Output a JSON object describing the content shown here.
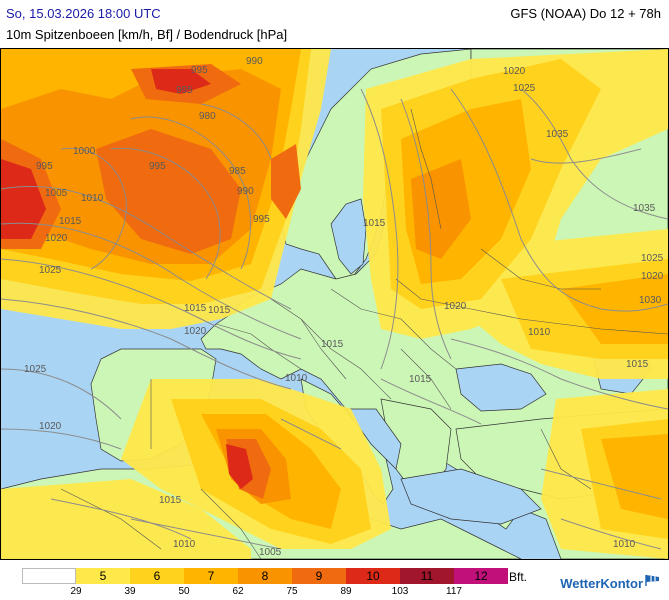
{
  "header": {
    "datetime": "So, 15.03.2026 18:00 UTC",
    "model": "GFS (NOAA) Do 12 + 78h",
    "parameter": "10m Spitzenboeen [km/h, Bf] / Bodendruck [hPa]"
  },
  "legend": {
    "bft_levels": [
      "",
      "5",
      "6",
      "7",
      "8",
      "9",
      "10",
      "11",
      "12"
    ],
    "bft_colors": [
      "#ffffff",
      "#ffe84a",
      "#ffd21e",
      "#ffb400",
      "#f99300",
      "#f06a10",
      "#dd2a18",
      "#a1162c",
      "#c2107a"
    ],
    "kmh_thresholds": [
      "29",
      "39",
      "50",
      "62",
      "75",
      "89",
      "103",
      "117"
    ],
    "unit": "Bft."
  },
  "brand": {
    "name": "WetterKontor",
    "icon": "wind-sock-icon"
  },
  "map": {
    "colors": {
      "sea": "#a9d4f4",
      "land": "#ccf6b6",
      "bf5": "#ffe84a",
      "bf6": "#ffd21e",
      "bf7": "#ffb400",
      "bf8": "#f99300",
      "bf9": "#f06a10",
      "bf10": "#dd2a18",
      "isobar": "#8c8c8c",
      "border": "#555555",
      "coast": "#333333"
    },
    "isobar_labels": [
      "995",
      "990",
      "995",
      "980",
      "995",
      "985",
      "1000",
      "990",
      "995",
      "1005",
      "1010",
      "1015",
      "1020",
      "1020",
      "1025",
      "995",
      "1015",
      "1020",
      "1025",
      "1020",
      "1015",
      "1010",
      "1015",
      "1010",
      "1025",
      "1020",
      "1015",
      "1010",
      "1005",
      "1015",
      "1020",
      "1025",
      "1035",
      "1035",
      "1030",
      "1015",
      "1010",
      "1015"
    ]
  }
}
